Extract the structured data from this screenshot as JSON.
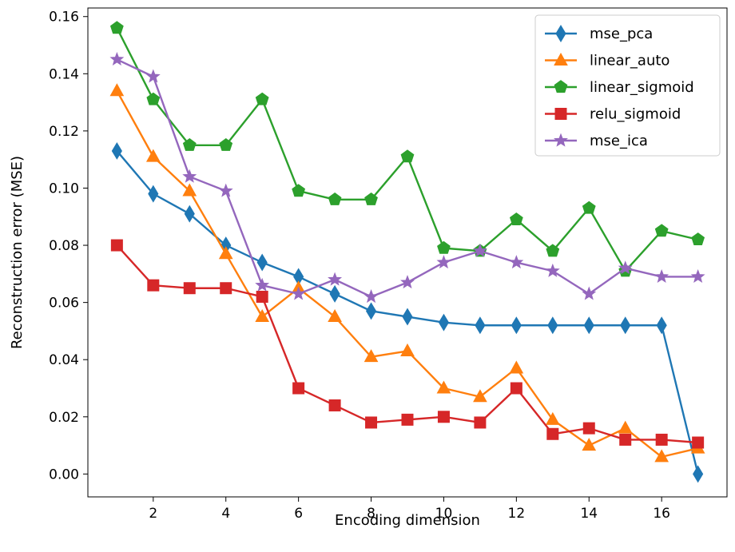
{
  "chart_data": {
    "type": "line",
    "title": "",
    "xlabel": "Encoding dimension",
    "ylabel": "Reconstruction error (MSE)",
    "xlim": [
      0.2,
      17.8
    ],
    "ylim": [
      -0.008,
      0.163
    ],
    "xticks": [
      2,
      4,
      6,
      8,
      10,
      12,
      14,
      16
    ],
    "yticks": [
      0.0,
      0.02,
      0.04,
      0.06,
      0.08,
      0.1,
      0.12,
      0.14,
      0.16
    ],
    "ytick_labels": [
      "0.00",
      "0.02",
      "0.04",
      "0.06",
      "0.08",
      "0.10",
      "0.12",
      "0.14",
      "0.16"
    ],
    "grid": false,
    "legend_position": "top-right",
    "x": [
      1,
      2,
      3,
      4,
      5,
      6,
      7,
      8,
      9,
      10,
      11,
      12,
      13,
      14,
      15,
      16,
      17
    ],
    "series": [
      {
        "name": "mse_pca",
        "color": "#1f77b4",
        "marker": "diamond",
        "values": [
          0.113,
          0.098,
          0.091,
          0.08,
          0.074,
          0.069,
          0.063,
          0.057,
          0.055,
          0.053,
          0.052,
          0.052,
          0.052,
          0.052,
          0.052,
          0.052,
          0.0
        ]
      },
      {
        "name": "linear_auto",
        "color": "#ff7f0e",
        "marker": "triangle",
        "values": [
          0.134,
          0.111,
          0.099,
          0.077,
          0.055,
          0.065,
          0.055,
          0.041,
          0.043,
          0.03,
          0.027,
          0.037,
          0.019,
          0.01,
          0.016,
          0.006,
          0.009
        ]
      },
      {
        "name": "linear_sigmoid",
        "color": "#2ca02c",
        "marker": "pentagon",
        "values": [
          0.156,
          0.131,
          0.115,
          0.115,
          0.131,
          0.099,
          0.096,
          0.096,
          0.111,
          0.079,
          0.078,
          0.089,
          0.078,
          0.093,
          0.071,
          0.085,
          0.082
        ]
      },
      {
        "name": "relu_sigmoid",
        "color": "#d62728",
        "marker": "square",
        "values": [
          0.08,
          0.066,
          0.065,
          0.065,
          0.062,
          0.03,
          0.024,
          0.018,
          0.019,
          0.02,
          0.018,
          0.03,
          0.014,
          0.016,
          0.012,
          0.012,
          0.011
        ]
      },
      {
        "name": "mse_ica",
        "color": "#9467bd",
        "marker": "star",
        "values": [
          0.145,
          0.139,
          0.104,
          0.099,
          0.066,
          0.063,
          0.068,
          0.062,
          0.067,
          0.074,
          0.078,
          0.074,
          0.071,
          0.063,
          0.072,
          0.069,
          0.069
        ]
      }
    ]
  }
}
